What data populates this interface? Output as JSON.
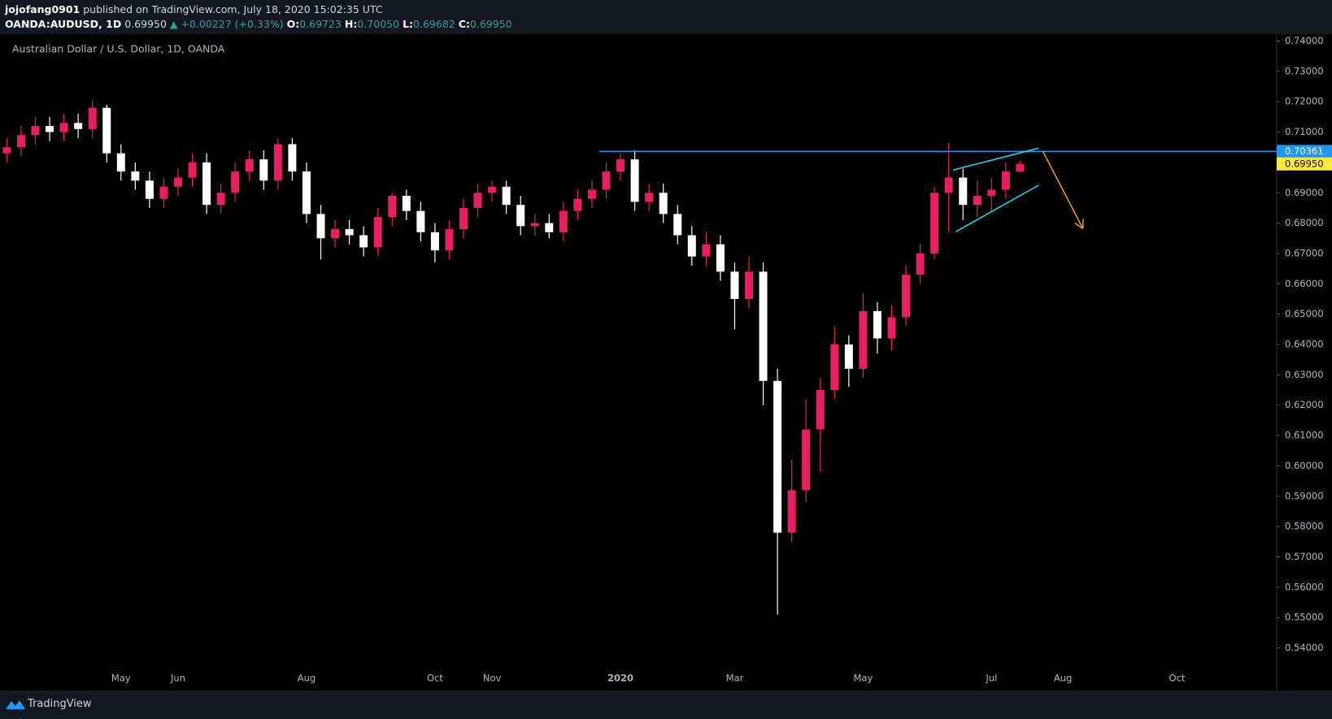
{
  "header": {
    "author": "jojofang0901",
    "published": "published on TradingView.com, July 18, 2020 15:02:35 UTC",
    "symbol": "OANDA:AUDUSD, 1D",
    "price": "0.69950",
    "change": "▲ +0.00227 (+0.33%)",
    "ohlc": [
      {
        "label": "O:",
        "value": "0.69723"
      },
      {
        "label": "H:",
        "value": "0.70050"
      },
      {
        "label": "L:",
        "value": "0.69682"
      },
      {
        "label": "C:",
        "value": "0.69950"
      }
    ]
  },
  "footer": {
    "brand": "TradingView"
  },
  "chart_data": {
    "type": "candlestick",
    "title": "Australian Dollar / U.S. Dollar, 1D, OANDA",
    "up_color": "#e91e63",
    "down_color": "#ffffff",
    "categories": [
      null,
      null,
      null,
      null,
      null,
      null,
      null,
      null,
      "May",
      null,
      null,
      null,
      "Jun",
      null,
      null,
      null,
      null,
      null,
      null,
      null,
      null,
      "Aug",
      null,
      null,
      null,
      null,
      null,
      null,
      null,
      null,
      "Oct",
      null,
      null,
      null,
      "Nov",
      null,
      null,
      null,
      null,
      null,
      null,
      null,
      null,
      "2020",
      null,
      null,
      null,
      null,
      null,
      null,
      null,
      "Mar",
      null,
      null,
      null,
      null,
      null,
      null,
      null,
      null,
      "May",
      null,
      null,
      null,
      null,
      null,
      null,
      null,
      null,
      "Jul",
      null,
      null,
      null,
      null,
      "Aug",
      null,
      null,
      null,
      null,
      null,
      null,
      null,
      "Oct",
      null,
      null,
      null,
      null,
      null,
      null
    ],
    "open": [
      0.703,
      0.705,
      0.709,
      0.712,
      0.71,
      0.713,
      0.711,
      0.718,
      0.703,
      0.697,
      0.694,
      0.688,
      0.692,
      0.695,
      0.7,
      0.686,
      0.69,
      0.697,
      0.701,
      0.694,
      0.706,
      0.697,
      0.683,
      0.675,
      0.678,
      0.676,
      0.672,
      0.682,
      0.689,
      0.684,
      0.677,
      0.671,
      0.678,
      0.685,
      0.69,
      0.692,
      0.686,
      0.679,
      0.68,
      0.677,
      0.684,
      0.688,
      0.691,
      0.697,
      0.701,
      0.687,
      0.69,
      0.683,
      0.676,
      0.669,
      0.673,
      0.664,
      0.655,
      0.664,
      0.628,
      0.578,
      0.592,
      0.612,
      0.625,
      0.64,
      0.632,
      0.651,
      0.642,
      0.649,
      0.663,
      0.67,
      0.69,
      0.695,
      0.686,
      0.689,
      0.691,
      0.697,
      null,
      null,
      null,
      null,
      null,
      null,
      null,
      null,
      null,
      null,
      null,
      null,
      null,
      null,
      null,
      null,
      null
    ],
    "high": [
      0.708,
      0.712,
      0.715,
      0.715,
      0.716,
      0.716,
      0.7205,
      0.719,
      0.706,
      0.7,
      0.697,
      0.695,
      0.698,
      0.703,
      0.703,
      0.693,
      0.7,
      0.704,
      0.704,
      0.708,
      0.708,
      0.7,
      0.686,
      0.681,
      0.681,
      0.679,
      0.685,
      0.69,
      0.691,
      0.687,
      0.68,
      0.681,
      0.688,
      0.693,
      0.694,
      0.694,
      0.689,
      0.683,
      0.683,
      0.687,
      0.691,
      0.694,
      0.7,
      0.703,
      0.704,
      0.693,
      0.693,
      0.686,
      0.679,
      0.677,
      0.676,
      0.667,
      0.669,
      0.667,
      0.632,
      0.602,
      0.622,
      0.629,
      0.646,
      0.643,
      0.657,
      0.654,
      0.653,
      0.666,
      0.673,
      0.692,
      0.7064,
      0.698,
      0.694,
      0.695,
      0.7,
      0.7005,
      null,
      null,
      null,
      null,
      null,
      null,
      null,
      null,
      null,
      null,
      null,
      null,
      null,
      null,
      null,
      null,
      null
    ],
    "low": [
      0.7,
      0.702,
      0.706,
      0.707,
      0.707,
      0.708,
      0.708,
      0.7,
      0.694,
      0.691,
      0.685,
      0.685,
      0.689,
      0.692,
      0.683,
      0.683,
      0.687,
      0.694,
      0.691,
      0.691,
      0.694,
      0.68,
      0.668,
      0.672,
      0.673,
      0.669,
      0.669,
      0.679,
      0.681,
      0.674,
      0.667,
      0.668,
      0.675,
      0.682,
      0.687,
      0.683,
      0.676,
      0.676,
      0.675,
      0.674,
      0.681,
      0.685,
      0.688,
      0.694,
      0.684,
      0.684,
      0.68,
      0.673,
      0.666,
      0.666,
      0.661,
      0.645,
      0.652,
      0.62,
      0.551,
      0.575,
      0.588,
      0.598,
      0.622,
      0.626,
      0.629,
      0.637,
      0.638,
      0.646,
      0.66,
      0.668,
      0.677,
      0.681,
      0.682,
      0.684,
      0.688,
      0.6968,
      null,
      null,
      null,
      null,
      null,
      null,
      null,
      null,
      null,
      null,
      null,
      null,
      null,
      null,
      null,
      null,
      null
    ],
    "close": [
      0.705,
      0.709,
      0.712,
      0.71,
      0.713,
      0.711,
      0.718,
      0.703,
      0.697,
      0.694,
      0.688,
      0.692,
      0.695,
      0.7,
      0.686,
      0.69,
      0.697,
      0.701,
      0.694,
      0.706,
      0.697,
      0.683,
      0.675,
      0.678,
      0.676,
      0.672,
      0.682,
      0.689,
      0.684,
      0.677,
      0.671,
      0.678,
      0.685,
      0.69,
      0.692,
      0.686,
      0.679,
      0.68,
      0.677,
      0.684,
      0.688,
      0.691,
      0.697,
      0.701,
      0.687,
      0.69,
      0.683,
      0.676,
      0.669,
      0.673,
      0.664,
      0.655,
      0.664,
      0.628,
      0.578,
      0.592,
      0.612,
      0.625,
      0.64,
      0.632,
      0.651,
      0.642,
      0.649,
      0.663,
      0.67,
      0.69,
      0.695,
      0.686,
      0.689,
      0.691,
      0.697,
      0.6995,
      null,
      null,
      null,
      null,
      null,
      null,
      null,
      null,
      null,
      null,
      null,
      null,
      null,
      null,
      null,
      null,
      null
    ],
    "ylim": [
      0.534,
      0.742
    ],
    "yticks": [
      {
        "value": 0.54,
        "label": "0.54000"
      },
      {
        "value": 0.55,
        "label": "0.55000"
      },
      {
        "value": 0.56,
        "label": "0.56000"
      },
      {
        "value": 0.57,
        "label": "0.57000"
      },
      {
        "value": 0.58,
        "label": "0.58000"
      },
      {
        "value": 0.59,
        "label": "0.59000"
      },
      {
        "value": 0.6,
        "label": "0.60000"
      },
      {
        "value": 0.61,
        "label": "0.61000"
      },
      {
        "value": 0.62,
        "label": "0.62000"
      },
      {
        "value": 0.63,
        "label": "0.63000"
      },
      {
        "value": 0.64,
        "label": "0.64000"
      },
      {
        "value": 0.65,
        "label": "0.65000"
      },
      {
        "value": 0.66,
        "label": "0.66000"
      },
      {
        "value": 0.67,
        "label": "0.67000"
      },
      {
        "value": 0.68,
        "label": "0.68000"
      },
      {
        "value": 0.69,
        "label": "0.69000"
      },
      {
        "value": 0.7,
        "label": "0.70000"
      },
      {
        "value": 0.71,
        "label": "0.71000"
      },
      {
        "value": 0.72,
        "label": "0.72000"
      },
      {
        "value": 0.73,
        "label": "0.73000"
      },
      {
        "value": 0.74,
        "label": "0.74000"
      }
    ],
    "horizontal_line": {
      "value": 0.70361,
      "label": "0.70361",
      "color": "#2196f3",
      "from": 41.5
    },
    "last_price": {
      "value": 0.6995,
      "label": "0.69950",
      "color": "#ffeb3b"
    },
    "trendlines": [
      {
        "color": "#00e5ff",
        "points": [
          [
            66.3,
            0.6975
          ],
          [
            72.3,
            0.7047
          ]
        ]
      },
      {
        "color": "#00e5ff",
        "points": [
          [
            66.5,
            0.6772
          ],
          [
            72.3,
            0.6925
          ]
        ]
      }
    ],
    "arrow": {
      "color": "#f0a30a",
      "points": [
        [
          72.6,
          0.7036
        ],
        [
          75.4,
          0.6782
        ]
      ]
    }
  }
}
